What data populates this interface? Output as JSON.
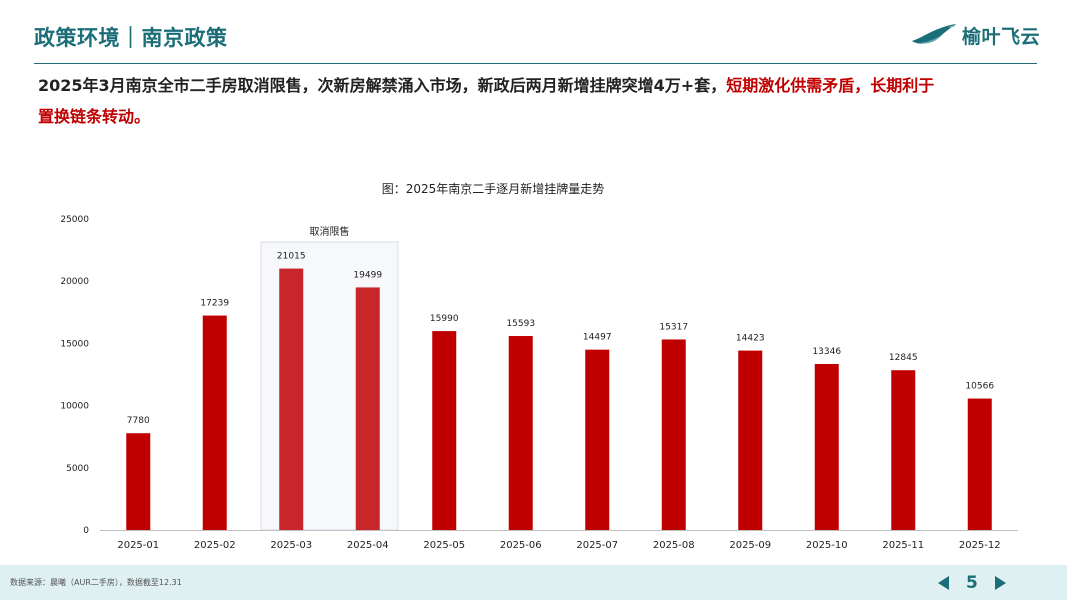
{
  "header": {
    "title": "政策环境｜南京政策",
    "logo_text": "榆叶飞云"
  },
  "summary": {
    "text_main": "2025年3月南京全市二手房取消限售，次新房解禁涌入市场，新政后两月新增挂牌突增4万+套，",
    "text_highlight": "短期激化供需矛盾，长期利于",
    "text_tail": "置换链条转动。"
  },
  "chart_data": {
    "type": "bar",
    "title": "图：2025年南京二手逐月新增挂牌量走势",
    "categories": [
      "2025-01",
      "2025-02",
      "2025-03",
      "2025-04",
      "2025-05",
      "2025-06",
      "2025-07",
      "2025-08",
      "2025-09",
      "2025-10",
      "2025-11",
      "2025-12"
    ],
    "values": [
      7780,
      17239,
      21015,
      19499,
      15990,
      15593,
      14497,
      15317,
      14423,
      13346,
      12845,
      10566
    ],
    "ylim": [
      0,
      25000
    ],
    "yticks": [
      0,
      5000,
      10000,
      15000,
      20000,
      25000
    ],
    "xlabel": "",
    "ylabel": "",
    "grid": false,
    "annotation": {
      "label": "取消限售",
      "categories": [
        "2025-03",
        "2025-04"
      ]
    },
    "colors": {
      "bar": "#c00000",
      "bar_highlight": "#c9262b",
      "highlight_box_fill": "#f6f8fc",
      "highlight_box_border": "#d8dde6"
    }
  },
  "footer": {
    "source": "数据来源：晨曦（AUR二手房），数据截至12.31",
    "page_number": "5"
  }
}
